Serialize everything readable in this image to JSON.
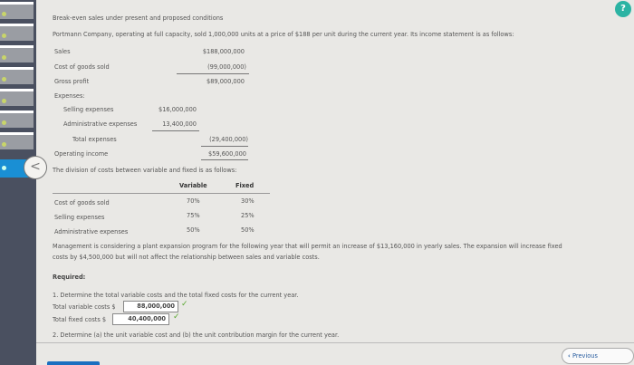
{
  "title": "Break-even sales under present and proposed conditions",
  "intro": "Portmann Company, operating at full capacity, sold 1,000,000 units at a price of $188 per unit during the current year. Its income statement is as follows:",
  "income": {
    "sales_label": "Sales",
    "sales": "$188,000,000",
    "cogs_label": "Cost of goods sold",
    "cogs": "(99,000,000)",
    "gross_label": "Gross profit",
    "gross": "$89,000,000",
    "expenses_label": "Expenses:",
    "selling_label": "Selling expenses",
    "selling": "$16,000,000",
    "admin_label": "Administrative expenses",
    "admin": "13,400,000",
    "total_label": "Total expenses",
    "total": "(29,400,000)",
    "op_label": "Operating income",
    "op": "$59,600,000"
  },
  "division_text": "The division of costs between variable and fixed is as follows:",
  "division": {
    "headers": [
      "Variable",
      "Fixed"
    ],
    "rows": [
      {
        "label": "Cost of goods sold",
        "variable": "70%",
        "fixed": "30%"
      },
      {
        "label": "Selling expenses",
        "variable": "75%",
        "fixed": "25%"
      },
      {
        "label": "Administrative expenses",
        "variable": "50%",
        "fixed": "50%"
      }
    ]
  },
  "management_1": "Management is considering a plant expansion program for the following year that will permit an increase of $13,160,000 in yearly sales. The expansion will increase fixed",
  "management_2": "costs by $4,500,000 but will not affect the relationship between sales and variable costs.",
  "required_label": "Required:",
  "q1": "1.  Determine the total variable costs and the total fixed costs for the current year.",
  "tvc_label": "Total variable costs $",
  "tvc_value": "88,000,000",
  "tfc_label": "Total fixed costs $",
  "tfc_value": "40,400,000",
  "q2": "2.  Determine (a) the unit variable cost and (b) the unit contribution margin for the current year.",
  "check": "✓",
  "previous_label": "Previous",
  "help_icon": "?",
  "back_icon": "<",
  "colors": {
    "sidebar": "#4a5060",
    "active": "#1a8fd4",
    "check": "#5aa832",
    "help": "#2bb3a3"
  }
}
